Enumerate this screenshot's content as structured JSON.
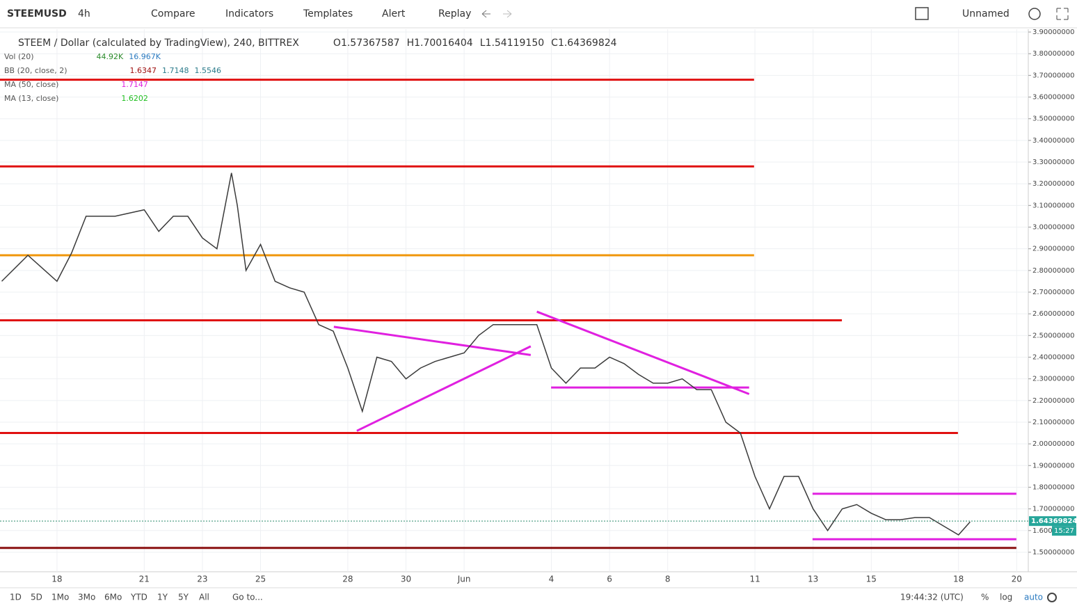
{
  "toolbar": {
    "symbol": "STEEMUSD",
    "interval": "4h",
    "buttons": [
      "Compare",
      "Indicators",
      "Templates",
      "Alert",
      "Replay"
    ],
    "layout": "Unnamed"
  },
  "legend": {
    "title": "STEEM / Dollar (calculated by TradingView), 240, BITTREX",
    "ohlc": [
      {
        "label": "O",
        "value": "1.57367587"
      },
      {
        "label": "H",
        "value": "1.70016404"
      },
      {
        "label": "L",
        "value": "1.54119150"
      },
      {
        "label": "C",
        "value": "1.64369824"
      }
    ],
    "indicators": [
      {
        "name": "Vol (20)",
        "values": [
          "44.92K",
          "16.967K"
        ],
        "colors": [
          "#2a8a2a",
          "#2a7ac0"
        ]
      },
      {
        "name": "BB (20, close, 2)",
        "values": [
          "1.6347",
          "1.7148",
          "1.5546"
        ],
        "colors": [
          "#a01010",
          "#2a7a8a",
          "#2a7a8a"
        ]
      },
      {
        "name": "MA (50, close)",
        "values": [
          "1.7147"
        ],
        "colors": [
          "#e020e0"
        ]
      },
      {
        "name": "MA (13, close)",
        "values": [
          "1.6202"
        ],
        "colors": [
          "#20c020"
        ]
      }
    ]
  },
  "chart_data": {
    "type": "line",
    "color": "#3a3a3a",
    "x": [
      -1.9,
      -1,
      0,
      0.5,
      1,
      2,
      3,
      3.5,
      4,
      4.5,
      5,
      5.5,
      6,
      6.2,
      6.5,
      7,
      7.5,
      8,
      8.5,
      9,
      9.5,
      10,
      10.5,
      11,
      11.5,
      12,
      12.5,
      13,
      13.5,
      14,
      14.5,
      15,
      16,
      16.5,
      17,
      17.5,
      18,
      18.5,
      19,
      19.5,
      20,
      20.5,
      21,
      21.5,
      22,
      22.5,
      23,
      23.5,
      24,
      24.5,
      25,
      25.5,
      26,
      26.5,
      27,
      27.5,
      28,
      28.5,
      29,
      29.5,
      30,
      30.5,
      31,
      31.4
    ],
    "values": [
      2.75,
      2.87,
      2.75,
      2.88,
      3.05,
      3.05,
      3.08,
      2.98,
      3.05,
      3.05,
      2.95,
      2.9,
      3.25,
      3.1,
      2.8,
      2.92,
      2.75,
      2.72,
      2.7,
      2.55,
      2.52,
      2.35,
      2.15,
      2.4,
      2.38,
      2.3,
      2.35,
      2.38,
      2.4,
      2.42,
      2.5,
      2.55,
      2.55,
      2.55,
      2.35,
      2.28,
      2.35,
      2.35,
      2.4,
      2.37,
      2.32,
      2.28,
      2.28,
      2.3,
      2.25,
      2.25,
      2.1,
      2.05,
      1.85,
      1.7,
      1.85,
      1.85,
      1.7,
      1.6,
      1.7,
      1.72,
      1.68,
      1.65,
      1.65,
      1.66,
      1.66,
      1.62,
      1.58,
      1.64
    ],
    "xlim": [
      -1.96,
      33.4
    ],
    "ylim": [
      1.41,
      3.913
    ],
    "xticks": [
      {
        "value": 0,
        "label": "18"
      },
      {
        "value": 3,
        "label": "21"
      },
      {
        "value": 5,
        "label": "23"
      },
      {
        "value": 7,
        "label": "25"
      },
      {
        "value": 10,
        "label": "28"
      },
      {
        "value": 12,
        "label": "30"
      },
      {
        "value": 14,
        "label": "Jun"
      },
      {
        "value": 17,
        "label": "4"
      },
      {
        "value": 19,
        "label": "6"
      },
      {
        "value": 21,
        "label": "8"
      },
      {
        "value": 24,
        "label": "11"
      },
      {
        "value": 26,
        "label": "13"
      },
      {
        "value": 28,
        "label": "15"
      },
      {
        "value": 31,
        "label": "18"
      },
      {
        "value": 33,
        "label": "20"
      }
    ],
    "yticks": [
      {
        "value": 1.5,
        "label": "1.50000000"
      },
      {
        "value": 1.6,
        "label": "1.60000000"
      },
      {
        "value": 1.7,
        "label": "1.70000000"
      },
      {
        "value": 1.8,
        "label": "1.80000000"
      },
      {
        "value": 1.9,
        "label": "1.90000000"
      },
      {
        "value": 2.0,
        "label": "2.00000000"
      },
      {
        "value": 2.1,
        "label": "2.10000000"
      },
      {
        "value": 2.2,
        "label": "2.20000000"
      },
      {
        "value": 2.3,
        "label": "2.30000000"
      },
      {
        "value": 2.4,
        "label": "2.40000000"
      },
      {
        "value": 2.5,
        "label": "2.50000000"
      },
      {
        "value": 2.6,
        "label": "2.60000000"
      },
      {
        "value": 2.7,
        "label": "2.70000000"
      },
      {
        "value": 2.8,
        "label": "2.80000000"
      },
      {
        "value": 2.9,
        "label": "2.90000000"
      },
      {
        "value": 3.0,
        "label": "3.00000000"
      },
      {
        "value": 3.1,
        "label": "3.10000000"
      },
      {
        "value": 3.2,
        "label": "3.20000000"
      },
      {
        "value": 3.3,
        "label": "3.30000000"
      },
      {
        "value": 3.4,
        "label": "3.40000000"
      },
      {
        "value": 3.5,
        "label": "3.50000000"
      },
      {
        "value": 3.6,
        "label": "3.60000000"
      },
      {
        "value": 3.7,
        "label": "3.70000000"
      },
      {
        "value": 3.8,
        "label": "3.80000000"
      },
      {
        "value": 3.9,
        "label": "3.90000000"
      }
    ],
    "grid": true,
    "levels": [
      {
        "value": 3.68,
        "x": [
          -1.96,
          23.97
        ],
        "color": "#e01010"
      },
      {
        "value": 3.28,
        "x": [
          -1.96,
          23.97
        ],
        "color": "#e01010"
      },
      {
        "value": 2.87,
        "x": [
          -1.96,
          23.97
        ],
        "color": "#f0960a"
      },
      {
        "value": 2.57,
        "x": [
          -1.96,
          26.99
        ],
        "color": "#e01010"
      },
      {
        "value": 2.05,
        "x": [
          -1.96,
          30.98
        ],
        "color": "#e01010"
      },
      {
        "value": 1.52,
        "x": [
          -1.96,
          32.99
        ],
        "color": "#8a1010"
      },
      {
        "value": 2.26,
        "x": [
          16.99,
          23.8
        ],
        "color": "#e020e0"
      },
      {
        "value": 1.77,
        "x": [
          25.98,
          32.99
        ],
        "color": "#e020e0"
      },
      {
        "value": 1.56,
        "x": [
          25.98,
          32.99
        ],
        "color": "#e020e0"
      }
    ],
    "trendlines": [
      {
        "x": [
          9.52,
          16.29
        ],
        "y": [
          2.54,
          2.41
        ],
        "color": "#e020e0"
      },
      {
        "x": [
          10.31,
          16.29
        ],
        "y": [
          2.06,
          2.45
        ],
        "color": "#e020e0"
      },
      {
        "x": [
          16.5,
          23.8
        ],
        "y": [
          2.61,
          2.23
        ],
        "color": "#e020e0"
      }
    ],
    "last_price": {
      "value": 1.64369824,
      "label": "1.64369824"
    },
    "countdown": "15:27"
  },
  "bottom_bar": {
    "ranges": [
      "1D",
      "5D",
      "1Mo",
      "3Mo",
      "6Mo",
      "YTD",
      "1Y",
      "5Y",
      "All"
    ],
    "goto": "Go to...",
    "clock": "19:44:32 (UTC)",
    "options": [
      "%",
      "log",
      "auto"
    ]
  }
}
